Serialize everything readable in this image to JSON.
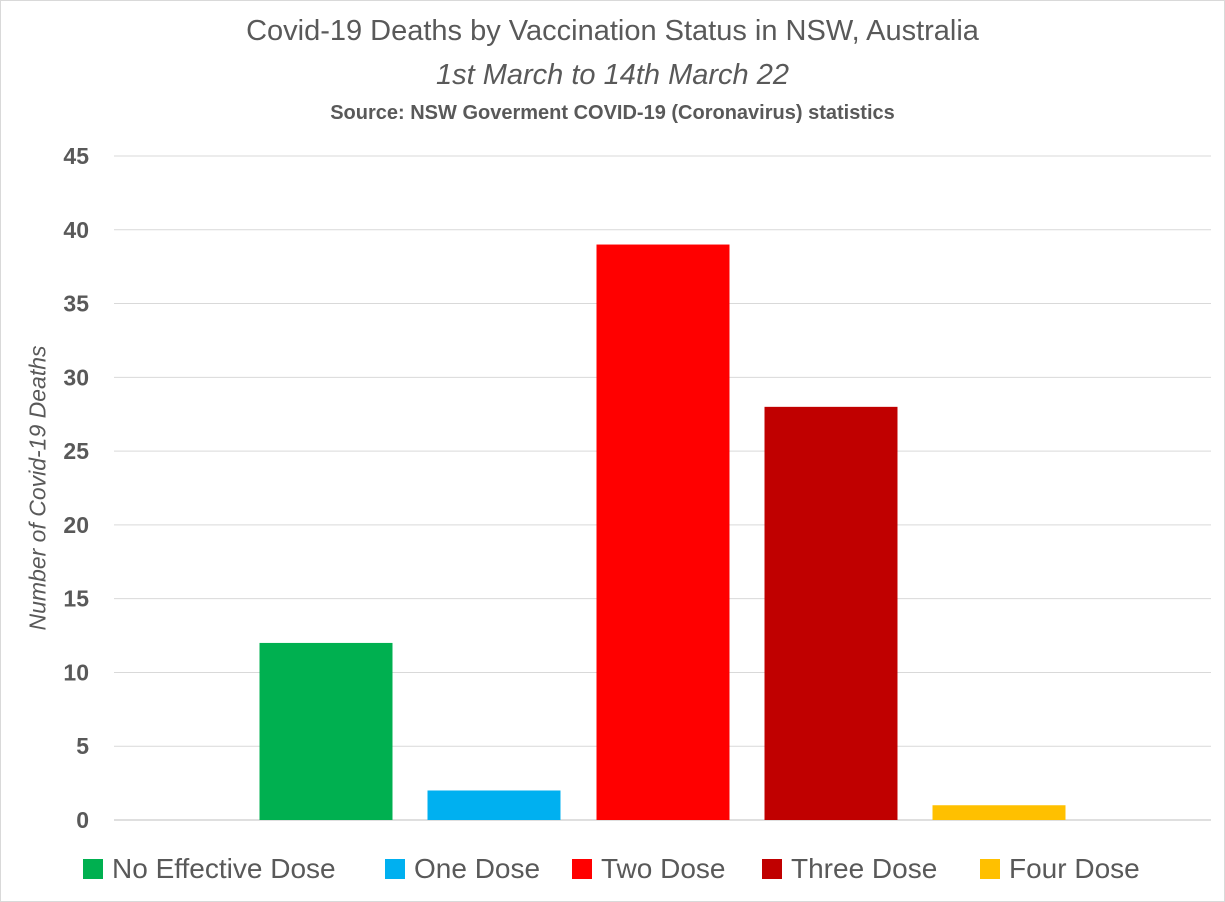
{
  "chart_data": {
    "type": "bar",
    "title": "Covid-19 Deaths by Vaccination Status in NSW, Australia",
    "subtitle": "1st March to 14th March 22",
    "source": "Source: NSW Goverment COVID-19 (Coronavirus) statistics",
    "xlabel": "",
    "ylabel": "Number of Covid-19 Deaths",
    "ylim": [
      0,
      45
    ],
    "yticks": [
      0,
      5,
      10,
      15,
      20,
      25,
      30,
      35,
      40,
      45
    ],
    "grid": true,
    "legend_position": "bottom",
    "series": [
      {
        "name": "No Effective Dose",
        "value": 12,
        "color": "#00B050"
      },
      {
        "name": "One Dose",
        "value": 2,
        "color": "#00B0F0"
      },
      {
        "name": "Two Dose",
        "value": 39,
        "color": "#FF0000"
      },
      {
        "name": "Three Dose",
        "value": 28,
        "color": "#C00000"
      },
      {
        "name": "Four Dose",
        "value": 1,
        "color": "#FFC000"
      }
    ]
  }
}
